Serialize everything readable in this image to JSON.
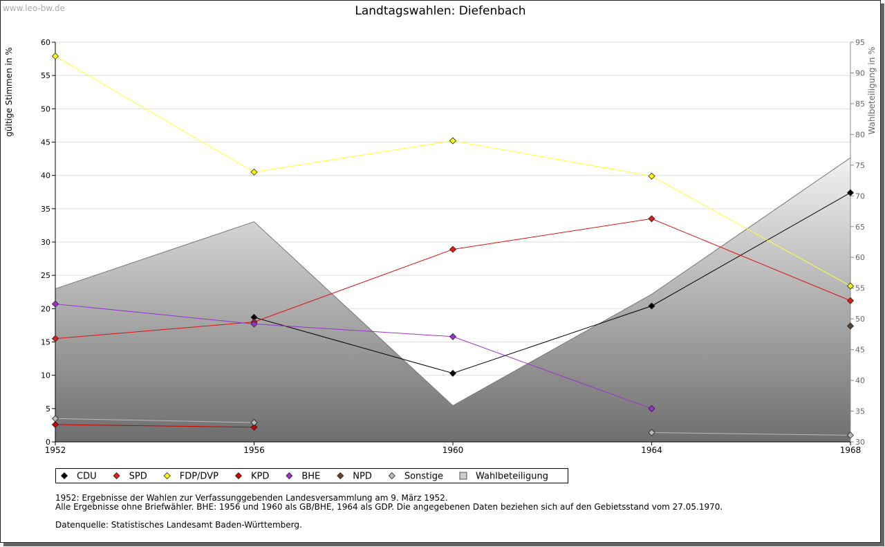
{
  "watermark": "www.leo-bw.de",
  "chart_data": {
    "type": "line",
    "title": "Landtagswahlen: Diefenbach",
    "ylabel": "gültige Stimmen in %",
    "y2label": "Wahlbeteiligung in %",
    "xlabel": "",
    "x": [
      1952,
      1956,
      1960,
      1964,
      1968
    ],
    "xlim": [
      1952,
      1968
    ],
    "ylim": [
      0,
      60
    ],
    "y2lim": [
      30,
      95
    ],
    "yticks": [
      0,
      5,
      10,
      15,
      20,
      25,
      30,
      35,
      40,
      45,
      50,
      55,
      60
    ],
    "y2ticks": [
      30,
      35,
      40,
      45,
      50,
      55,
      60,
      65,
      70,
      75,
      80,
      85,
      90,
      95
    ],
    "grid": true,
    "legend_position": "bottom-left",
    "series": [
      {
        "name": "CDU",
        "color": "#000000",
        "marker": "#000000",
        "values": [
          null,
          18.7,
          10.3,
          20.4,
          37.4
        ]
      },
      {
        "name": "SPD",
        "color": "#dd1111",
        "marker": "#e41b1b",
        "values": [
          15.5,
          18.0,
          28.9,
          33.5,
          21.2
        ]
      },
      {
        "name": "FDP/DVP",
        "color": "#ffff33",
        "marker": "#ffff00",
        "values": [
          57.9,
          40.5,
          45.2,
          39.9,
          23.4
        ]
      },
      {
        "name": "KPD",
        "color": "#cc0000",
        "marker": "#cc0000",
        "values": [
          2.6,
          2.2,
          null,
          null,
          null
        ]
      },
      {
        "name": "BHE",
        "color": "#9933cc",
        "marker": "#9933cc",
        "values": [
          20.7,
          17.7,
          15.8,
          5.0,
          null
        ]
      },
      {
        "name": "NPD",
        "color": "#5c4030",
        "marker": "#5c4030",
        "values": [
          null,
          null,
          null,
          null,
          17.4
        ]
      },
      {
        "name": "Sonstige",
        "color": "#bbbbbb",
        "marker": "#bbbbbb",
        "values": [
          3.5,
          2.9,
          null,
          1.4,
          1.0
        ]
      }
    ],
    "area": {
      "name": "Wahlbeteiligung",
      "axis": "right",
      "values": [
        54.9,
        65.8,
        35.9,
        54.0,
        76.2
      ]
    }
  },
  "notes": {
    "line1": "1952: Ergebnisse der Wahlen zur Verfassunggebenden Landesversammlung am 9. März 1952.",
    "line2": "Alle Ergebnisse ohne Briefwähler. BHE: 1956 und 1960 als GB/BHE, 1964 als GDP. Die angegebenen Daten beziehen sich auf den Gebietsstand vom 27.05.1970.",
    "line3": "Datenquelle: Statistisches Landesamt Baden-Württemberg."
  }
}
